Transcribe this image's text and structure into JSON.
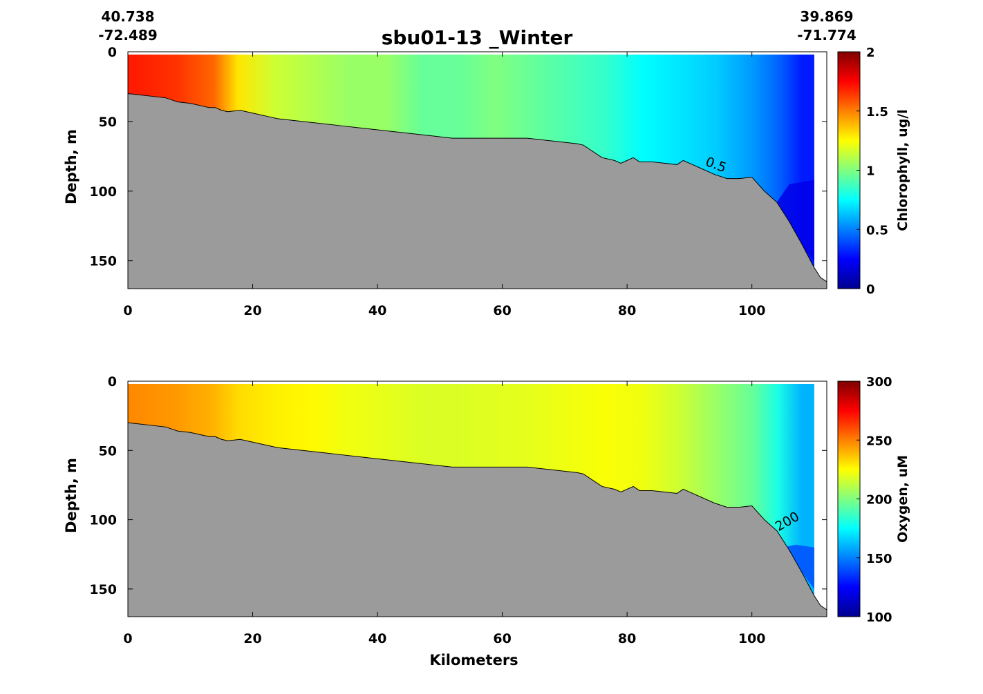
{
  "title": "sbu01-13 _Winter",
  "corners": {
    "left": {
      "lat": "40.738",
      "lon": "-72.489"
    },
    "right": {
      "lat": "39.869",
      "lon": "-71.774"
    }
  },
  "colors": {
    "seafloor": "#9b9b9b",
    "colormap": [
      "#00008f",
      "#0000ff",
      "#0080ff",
      "#00ffff",
      "#80ff80",
      "#ffff00",
      "#ff8000",
      "#ff0000",
      "#800000"
    ]
  },
  "chart_data": [
    {
      "type": "heatmap",
      "variable": "Chlorophyll",
      "ylabel": "Depth, m",
      "xlabel": "",
      "colorbar_label": "Chlorophyll, ug/l",
      "xlim": [
        0,
        112
      ],
      "ylim": [
        0,
        170
      ],
      "y_reversed": true,
      "xticks": [
        0,
        20,
        40,
        60,
        80,
        100
      ],
      "yticks": [
        0,
        50,
        100,
        150
      ],
      "clim": [
        0,
        2
      ],
      "cticks": [
        "0",
        "0.5",
        "1",
        "1.5",
        "2"
      ],
      "bottom_depth": {
        "x": [
          0,
          2,
          4,
          6,
          8,
          10,
          12,
          13,
          14,
          15,
          16,
          18,
          20,
          22,
          24,
          26,
          28,
          30,
          32,
          34,
          36,
          38,
          40,
          42,
          44,
          46,
          48,
          50,
          52,
          54,
          56,
          58,
          60,
          62,
          64,
          66,
          68,
          70,
          72,
          73,
          74,
          75,
          76,
          78,
          79,
          80,
          81,
          82,
          84,
          86,
          88,
          89,
          90,
          92,
          94,
          96,
          98,
          100,
          102,
          104,
          106,
          108,
          110,
          111,
          112
        ],
        "y": [
          30,
          31,
          32,
          33,
          36,
          37,
          39,
          40,
          40,
          42,
          43,
          42,
          44,
          46,
          48,
          49,
          50,
          51,
          52,
          53,
          54,
          55,
          56,
          57,
          58,
          59,
          60,
          61,
          62,
          62,
          62,
          62,
          62,
          62,
          62,
          63,
          64,
          65,
          66,
          67,
          70,
          73,
          76,
          78,
          80,
          78,
          76,
          79,
          79,
          80,
          81,
          78,
          80,
          84,
          88,
          91,
          91,
          90,
          100,
          108,
          122,
          138,
          155,
          162,
          165
        ]
      },
      "contours": [
        {
          "label": "0.5",
          "x": 94,
          "y": 84
        }
      ],
      "field": {
        "x": [
          1,
          8,
          14,
          18,
          24,
          30,
          36,
          42,
          48,
          54,
          60,
          66,
          72,
          78,
          84,
          90,
          96,
          102,
          106,
          110
        ],
        "value": [
          1.7,
          1.65,
          1.55,
          1.3,
          1.15,
          1.1,
          1.05,
          1.05,
          0.95,
          0.95,
          1.0,
          0.95,
          0.9,
          0.85,
          0.75,
          0.7,
          0.65,
          0.55,
          0.45,
          0.3
        ]
      }
    },
    {
      "type": "heatmap",
      "variable": "Oxygen",
      "ylabel": "Depth, m",
      "xlabel": "Kilometers",
      "colorbar_label": "Oxygen, uM",
      "xlim": [
        0,
        112
      ],
      "ylim": [
        0,
        170
      ],
      "y_reversed": true,
      "xticks": [
        0,
        20,
        40,
        60,
        80,
        100
      ],
      "yticks": [
        0,
        50,
        100,
        150
      ],
      "clim": [
        100,
        300
      ],
      "cticks": [
        "100",
        "150",
        "200",
        "250",
        "300"
      ],
      "bottom_depth": "same as chlorophyll panel",
      "contours": [
        {
          "label": "200",
          "x": 106,
          "y": 104
        }
      ],
      "field": {
        "x": [
          1,
          8,
          14,
          18,
          24,
          30,
          36,
          42,
          48,
          54,
          60,
          66,
          72,
          78,
          84,
          90,
          96,
          102,
          106,
          110
        ],
        "value": [
          248,
          245,
          240,
          232,
          228,
          226,
          222,
          220,
          218,
          218,
          219,
          220,
          222,
          224,
          222,
          215,
          205,
          195,
          180,
          160
        ]
      }
    }
  ]
}
